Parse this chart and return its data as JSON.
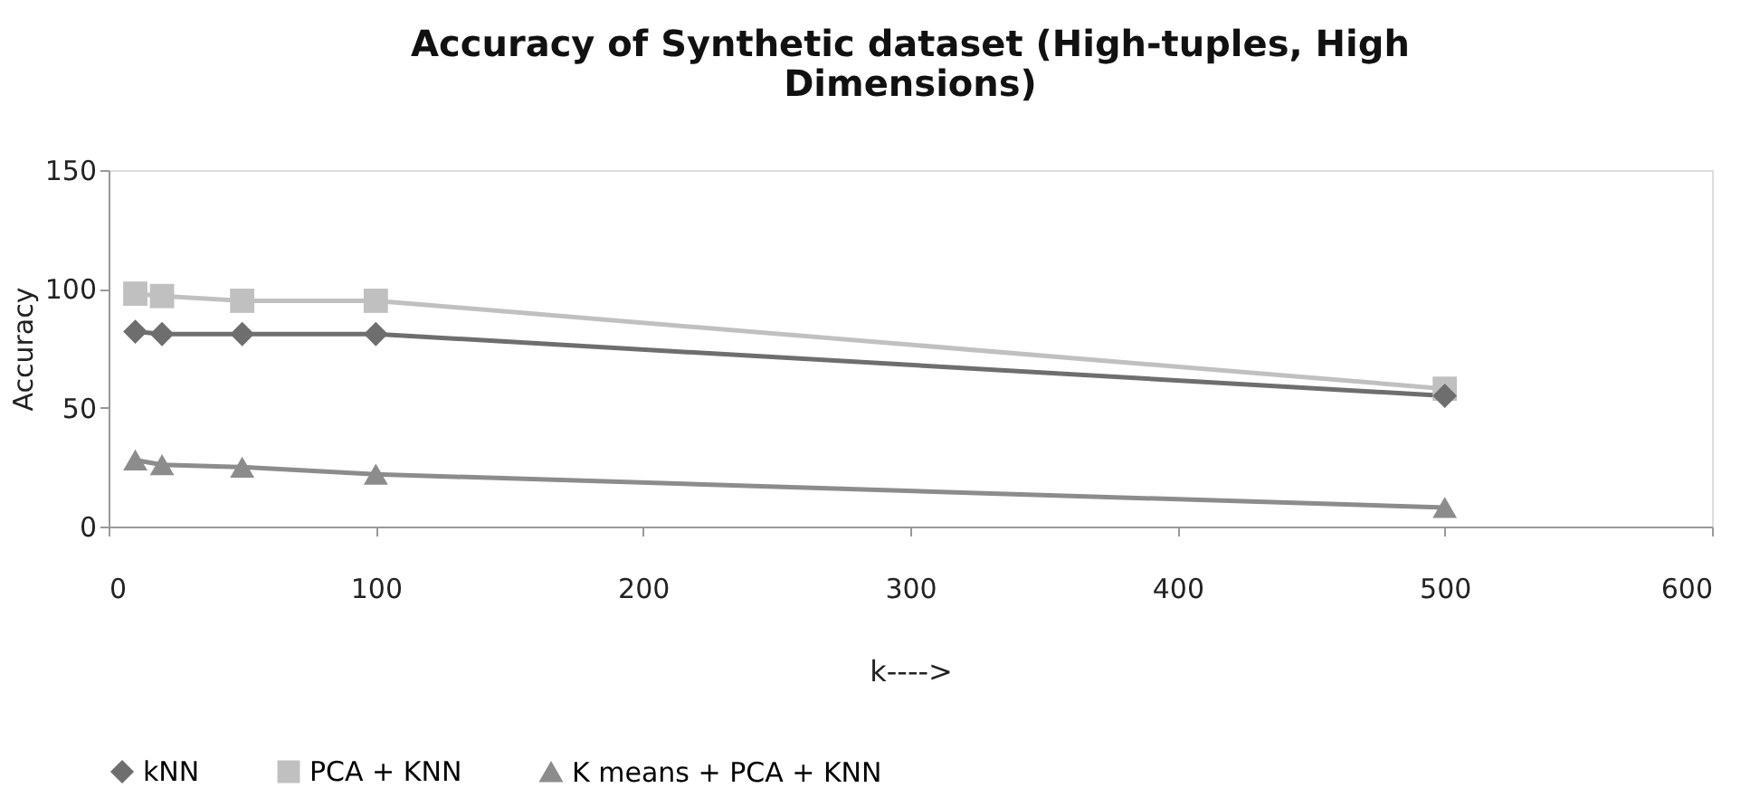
{
  "chart_data": {
    "type": "line",
    "title": "Accuracy of Synthetic dataset (High-tuples, High\nDimensions)",
    "xlabel": "k---->",
    "ylabel": "Accuracy",
    "xlim": [
      0,
      600
    ],
    "xticks": [
      0,
      100,
      200,
      300,
      400,
      500,
      600
    ],
    "ylim": [
      0,
      150
    ],
    "yticks": [
      0,
      50,
      100,
      150
    ],
    "grid": false,
    "legend": "bottom",
    "x": [
      10,
      20,
      50,
      100,
      500
    ],
    "series": [
      {
        "name": "kNN",
        "color": "#6e6e6e",
        "marker": "diamond",
        "values": [
          82,
          81,
          81,
          81,
          55
        ]
      },
      {
        "name": "PCA + KNN",
        "color": "#c0c0c0",
        "marker": "square",
        "values": [
          98,
          97,
          95,
          95,
          58
        ]
      },
      {
        "name": "K means + PCA + KNN",
        "color": "#8c8c8c",
        "marker": "triangle",
        "values": [
          28,
          26,
          25,
          22,
          8
        ]
      }
    ]
  }
}
